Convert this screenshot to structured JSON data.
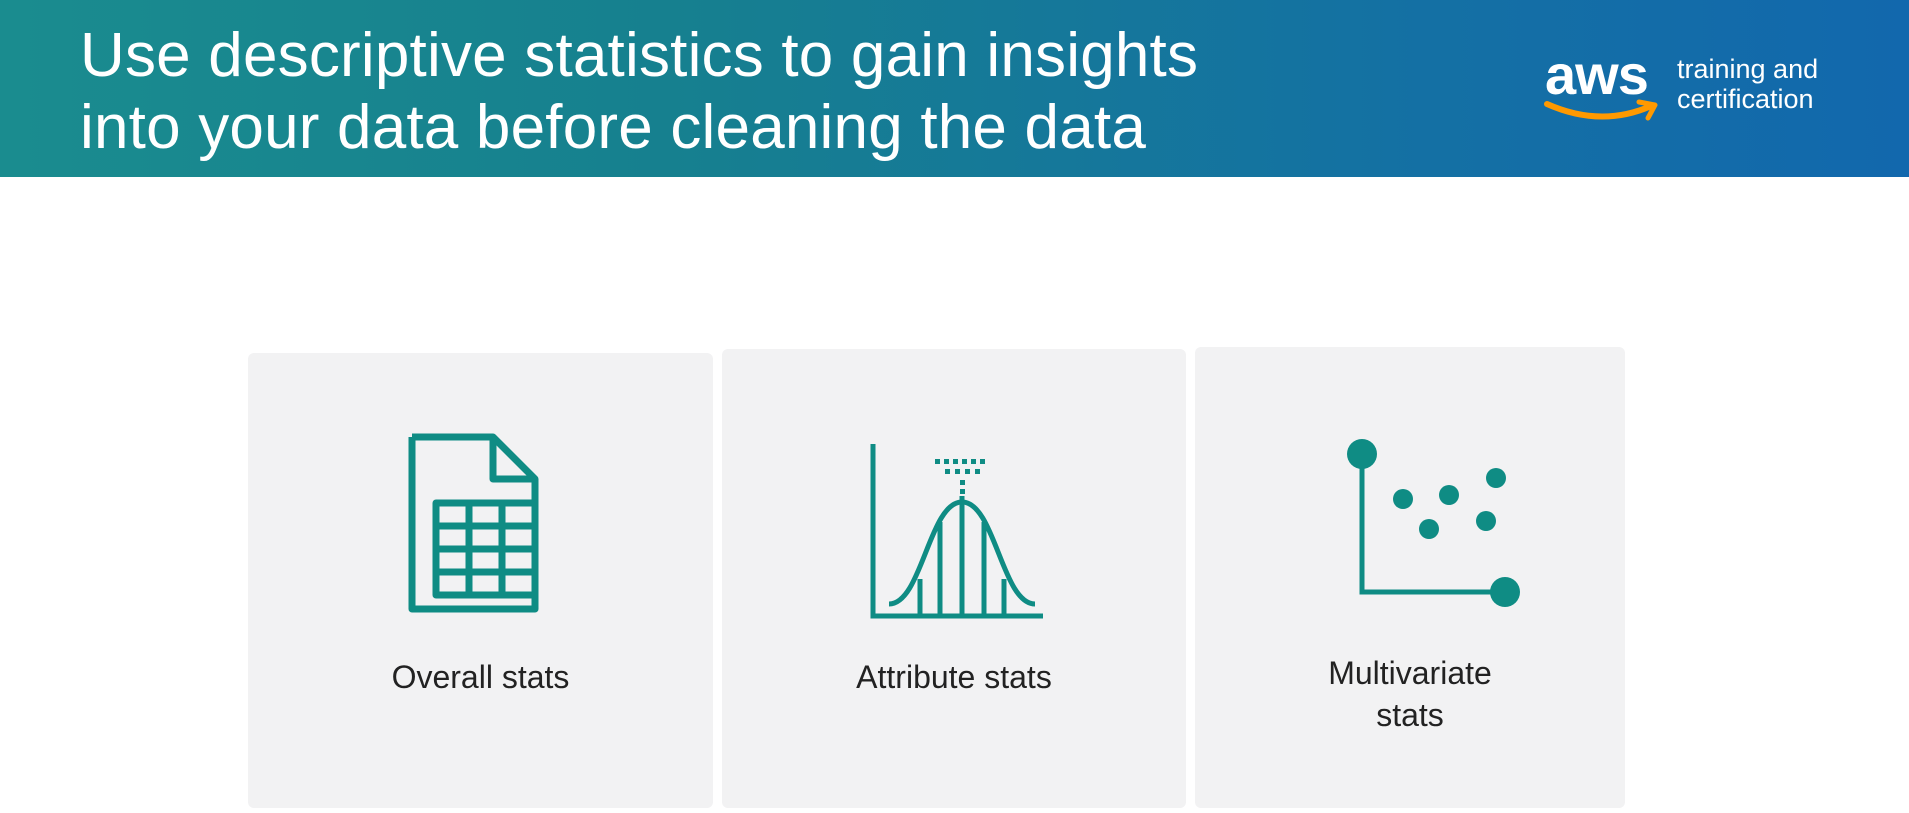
{
  "header": {
    "title_line1": "Use descriptive statistics to gain insights",
    "title_line2": "into your data before cleaning the data",
    "background_colors": [
      "#1a8c8f",
      "#1268ad"
    ]
  },
  "logo": {
    "brand": "aws",
    "tagline_line1": "training and",
    "tagline_line2": "certification",
    "smile_color": "#f90"
  },
  "cards": [
    {
      "label": "Overall stats",
      "icon": "spreadsheet-document-icon"
    },
    {
      "label": "Attribute stats",
      "icon": "normal-distribution-icon"
    },
    {
      "label_line1": "Multivariate",
      "label_line2": "stats",
      "icon": "scatter-plot-icon"
    }
  ],
  "colors": {
    "accent": "#0f8c84",
    "card_bg": "#f2f2f3"
  }
}
